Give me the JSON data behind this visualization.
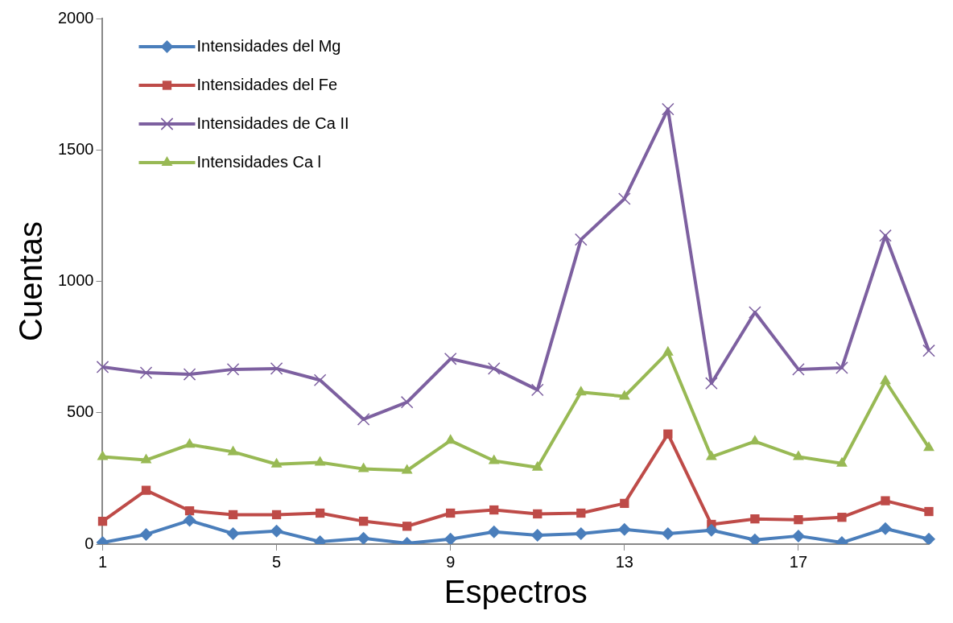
{
  "chart_data": {
    "type": "line",
    "xlabel": "Espectros",
    "ylabel": "Cuentas",
    "categories": [
      "1",
      null,
      null,
      null,
      "5",
      null,
      null,
      null,
      "9",
      null,
      null,
      null,
      "13",
      null,
      null,
      null,
      "17",
      null,
      null,
      null
    ],
    "ylim": [
      0,
      2000
    ],
    "yticks": [
      0,
      500,
      1000,
      1500,
      2000
    ],
    "grid": false,
    "legend": "top left",
    "line_style": "solid",
    "series": [
      {
        "name": "Intensidades del Mg",
        "color": "#4a7ebb",
        "marker": "diamond",
        "values": [
          6,
          37,
          90,
          40,
          50,
          9,
          22,
          3,
          19,
          47,
          34,
          40,
          56,
          40,
          53,
          16,
          31,
          6,
          59,
          19
        ]
      },
      {
        "name": "Intensidades del Fe",
        "color": "#be4b48",
        "marker": "square",
        "values": [
          87,
          205,
          127,
          112,
          112,
          118,
          87,
          68,
          118,
          130,
          115,
          118,
          155,
          419,
          75,
          96,
          93,
          102,
          165,
          124
        ]
      },
      {
        "name": "Intensidades de Ca II",
        "color": "#7d60a0",
        "marker": "cross",
        "values": [
          674,
          652,
          646,
          665,
          668,
          624,
          475,
          540,
          705,
          668,
          587,
          1159,
          1314,
          1655,
          612,
          882,
          665,
          671,
          1174,
          736
        ]
      },
      {
        "name": "Intensidades Ca l",
        "color": "#98b954",
        "marker": "triangle",
        "values": [
          332,
          320,
          379,
          351,
          304,
          311,
          286,
          280,
          394,
          317,
          292,
          578,
          562,
          730,
          332,
          391,
          332,
          307,
          621,
          367
        ]
      }
    ]
  }
}
